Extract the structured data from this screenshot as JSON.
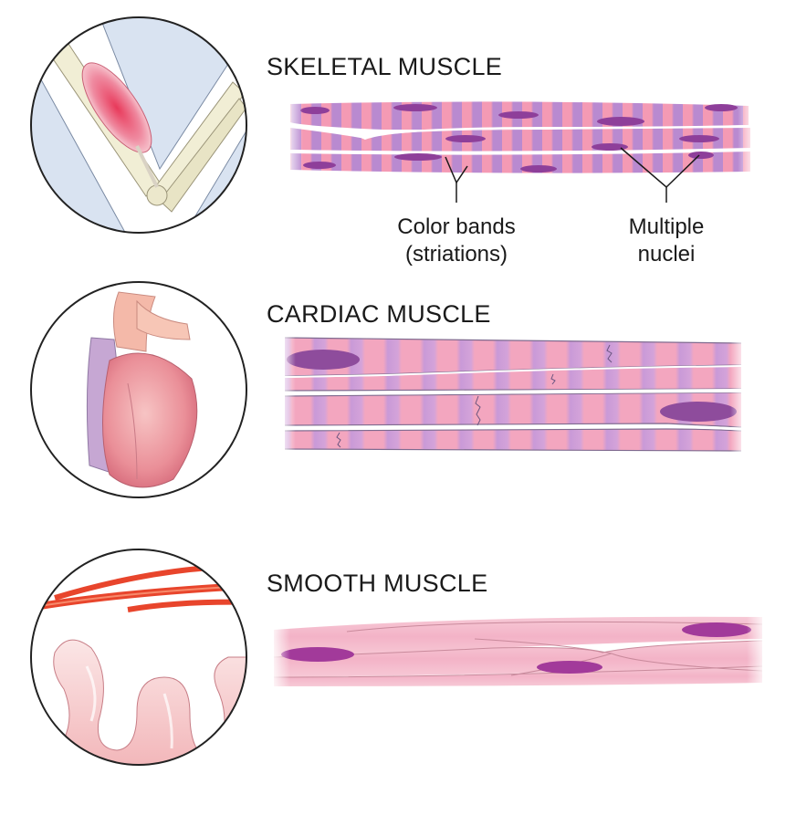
{
  "sections": {
    "skeletal": {
      "title": "SKELETAL MUSCLE",
      "labels": {
        "color_bands_line1": "Color bands",
        "color_bands_line2": "(striations)",
        "nuclei_line1": "Multiple",
        "nuclei_line2": "nuclei"
      }
    },
    "cardiac": {
      "title": "CARDIAC MUSCLE"
    },
    "smooth": {
      "title": "SMOOTH MUSCLE"
    }
  },
  "colors": {
    "skeletal_stripe_a": "#f49ab4",
    "skeletal_stripe_b": "#b98ad0",
    "skeletal_nucleus": "#8e3f9a",
    "cardiac_stripe_a": "#f3a6bf",
    "cardiac_stripe_b": "#c89ad8",
    "smooth_fill": "#f5b9cb",
    "smooth_nucleus": "#a23a9a",
    "circle_outline": "#222222",
    "artery": "#e8452c"
  },
  "icons": [
    "arm-flexing-icon",
    "heart-icon",
    "intestine-icon"
  ]
}
